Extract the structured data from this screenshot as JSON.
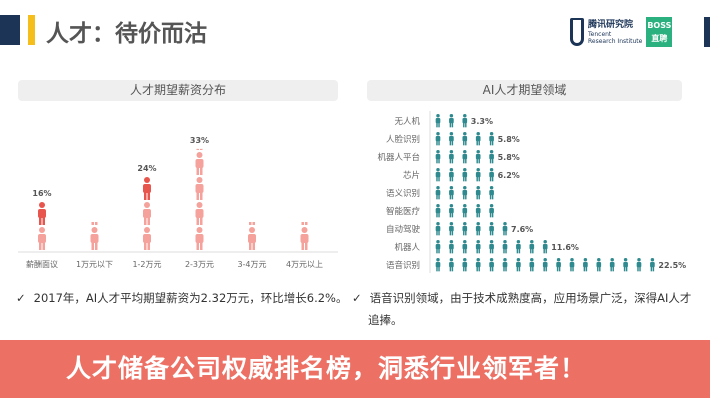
{
  "header": {
    "title": "人才：待价而沽",
    "logo_cn": "腾讯研究院",
    "logo_en_1": "Tencent",
    "logo_en_2": "Research Institute",
    "boss_1": "BOSS",
    "boss_2": "直聘"
  },
  "colors": {
    "navy": "#1c3557",
    "accent": "#f5be1b",
    "banner": "#ea5c4e",
    "person_pink": "#f4a29b",
    "person_red": "#e8554c",
    "person_teal": "#2e8a8f"
  },
  "chart_data": [
    {
      "type": "bar",
      "title": "人才期望薪资分布",
      "icon": "person-icon",
      "categories": [
        "薪酬面议",
        "1万元以下",
        "1-2万元",
        "2-3万元",
        "3-4万元",
        "4万元以上"
      ],
      "values": [
        16,
        null,
        24,
        33,
        null,
        null
      ],
      "value_suffix": "%"
    },
    {
      "type": "bar",
      "orientation": "horizontal",
      "title": "AI人才期望领域",
      "icon": "person-icon",
      "categories": [
        "无人机",
        "人脸识别",
        "机器人平台",
        "芯片",
        "语义识别",
        "智能医疗",
        "自动驾驶",
        "机器人",
        "语音识别"
      ],
      "values": [
        3.3,
        5.8,
        5.8,
        6.2,
        null,
        null,
        7.6,
        11.6,
        22.5
      ],
      "value_suffix": "%"
    }
  ],
  "banner": {
    "text": "人才储备公司权威排名榜，洞悉行业领军者！"
  },
  "notes": [
    {
      "check": "✓",
      "text": "2017年，AI人才平均期望薪资为2.32万元，环比增长6.2%。"
    },
    {
      "check": "✓",
      "text": "语音识别领域，由于技术成熟度高，应用场景广泛，深得AI人才追捧。"
    }
  ]
}
